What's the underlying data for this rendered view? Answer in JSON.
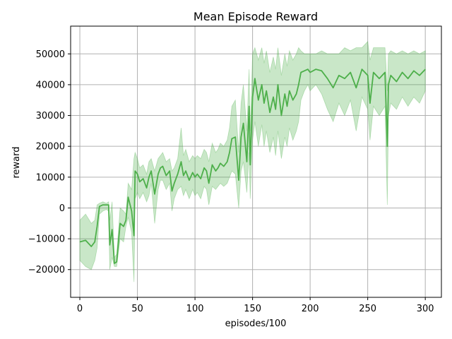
{
  "chart_data": {
    "type": "line",
    "title": "Mean Episode Reward",
    "xlabel": "episodes/100",
    "ylabel": "reward",
    "xlim": [
      -8,
      314
    ],
    "ylim": [
      -29000,
      59000
    ],
    "xticks": [
      0,
      50,
      100,
      150,
      200,
      250,
      300
    ],
    "yticks": [
      -20000,
      -10000,
      0,
      10000,
      20000,
      30000,
      40000,
      50000
    ],
    "xtick_labels": [
      "0",
      "50",
      "100",
      "150",
      "200",
      "250",
      "300"
    ],
    "ytick_labels": [
      "−20000",
      "−10000",
      "0",
      "10000",
      "20000",
      "30000",
      "40000",
      "50000"
    ],
    "grid": true,
    "line_color": "#4daf4a",
    "band_color": "#4daf4a",
    "series": [
      {
        "x": [
          0,
          5,
          10,
          13,
          15,
          17,
          20,
          23,
          25,
          26,
          28,
          30,
          32,
          35,
          38,
          40,
          42,
          45,
          47,
          48,
          50,
          52,
          55,
          58,
          60,
          62,
          65,
          68,
          70,
          72,
          75,
          78,
          80,
          82,
          85,
          88,
          90,
          92,
          95,
          98,
          100,
          102,
          105,
          108,
          110,
          112,
          115,
          118,
          120,
          122,
          125,
          128,
          130,
          132,
          135,
          138,
          140,
          142,
          145,
          147,
          148,
          150,
          152,
          155,
          158,
          160,
          162,
          165,
          168,
          170,
          172,
          175,
          178,
          180,
          182,
          185,
          188,
          190,
          192,
          195,
          198,
          200,
          205,
          210,
          215,
          220,
          225,
          230,
          235,
          240,
          245,
          250,
          252,
          255,
          260,
          265,
          267,
          268,
          270,
          275,
          280,
          285,
          290,
          295,
          300
        ],
        "mean": [
          -11000,
          -10500,
          -12500,
          -11000,
          -6000,
          500,
          1000,
          1000,
          1000,
          -12000,
          -7000,
          -18000,
          -17500,
          -5000,
          -6000,
          -4000,
          3500,
          -1000,
          -9000,
          12000,
          11000,
          8500,
          9500,
          6500,
          10000,
          12000,
          4500,
          11000,
          13000,
          13500,
          10500,
          12000,
          5500,
          8000,
          11000,
          15000,
          10500,
          12000,
          9000,
          11500,
          10000,
          11000,
          9500,
          13000,
          12000,
          8000,
          14000,
          12000,
          13000,
          14500,
          13500,
          15000,
          18000,
          22500,
          23000,
          9000,
          23000,
          27500,
          15000,
          33000,
          14000,
          36000,
          42000,
          35000,
          40000,
          34000,
          38000,
          31000,
          36000,
          32000,
          40000,
          30000,
          37000,
          33000,
          38000,
          35000,
          37000,
          40000,
          44000,
          44500,
          45000,
          44000,
          45000,
          44500,
          42000,
          39000,
          43000,
          42000,
          44000,
          39000,
          45000,
          43000,
          34000,
          44000,
          42000,
          44000,
          20000,
          40000,
          43000,
          41000,
          44000,
          42000,
          44500,
          43000,
          45000
        ],
        "lower": [
          -17000,
          -19000,
          -20000,
          -17000,
          -13000,
          -2000,
          -1000,
          -500,
          -1000,
          -20000,
          -16000,
          -19000,
          -19000,
          -10000,
          -11000,
          -6000,
          -3000,
          -8000,
          -24000,
          3000,
          5000,
          3000,
          5000,
          2000,
          4000,
          8000,
          -5000,
          6000,
          9000,
          9000,
          6000,
          8000,
          -1000,
          3000,
          6000,
          7000,
          4000,
          6000,
          3000,
          6000,
          4000,
          5000,
          3000,
          7000,
          6000,
          1000,
          7000,
          6000,
          7000,
          8000,
          7000,
          8000,
          10000,
          12000,
          11000,
          0,
          12000,
          15000,
          5000,
          18000,
          3000,
          22000,
          28000,
          20000,
          27000,
          20000,
          25000,
          18000,
          23000,
          17000,
          25000,
          16000,
          23000,
          20000,
          26000,
          22000,
          25000,
          28000,
          35000,
          38000,
          40000,
          38000,
          40000,
          37000,
          32000,
          28000,
          34000,
          30000,
          35000,
          25000,
          36000,
          32000,
          22000,
          33000,
          30000,
          33000,
          1000,
          30000,
          34000,
          32000,
          36000,
          33000,
          36000,
          34000,
          38000
        ],
        "upper": [
          -4000,
          -2000,
          -5000,
          -4000,
          1000,
          1500,
          2000,
          1500,
          2000,
          -4000,
          2000,
          -16000,
          -15000,
          0,
          -1000,
          -2000,
          8000,
          6000,
          16000,
          18000,
          16000,
          13000,
          14000,
          11000,
          15000,
          16000,
          12000,
          16000,
          17000,
          18000,
          15000,
          16000,
          12000,
          13000,
          16000,
          26000,
          17000,
          19000,
          15000,
          17000,
          16000,
          17000,
          16000,
          19000,
          18000,
          15000,
          21000,
          18000,
          19000,
          21000,
          20000,
          22000,
          26000,
          33000,
          35000,
          18000,
          34000,
          40000,
          25000,
          45000,
          25000,
          50000,
          52000,
          48000,
          52000,
          47000,
          51000,
          44000,
          49000,
          45000,
          52000,
          43000,
          50000,
          46000,
          51000,
          48000,
          50000,
          52000,
          51000,
          50000,
          50000,
          50000,
          50000,
          51000,
          50000,
          50000,
          50000,
          52000,
          51000,
          52000,
          52000,
          54000,
          48000,
          52000,
          52000,
          52000,
          38000,
          50000,
          51000,
          50000,
          51000,
          50000,
          51000,
          50000,
          51000
        ]
      }
    ]
  }
}
